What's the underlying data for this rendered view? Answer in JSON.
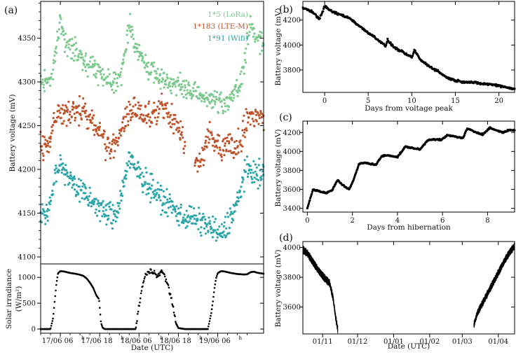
{
  "colors": {
    "lora": "#7cc98e",
    "ltem": "#c0522a",
    "wifi": "#2aa5a8",
    "black": "#000000"
  },
  "chart_data": [
    {
      "panel": "(a)",
      "type": "scatter",
      "xlabel": "Date (UTC)",
      "ylabel": "Battery voltage (mV)",
      "x_unit": "hours since 17/06 00:00",
      "xlim": [
        0,
        68
      ],
      "ylim": [
        4092,
        4392
      ],
      "yticks": [
        4100,
        4150,
        4200,
        4250,
        4300,
        4350
      ],
      "legend": [
        "1*5 (LoRa)",
        "1*183 (LTE-M)",
        "1*91 (Wifi)"
      ],
      "series": [
        {
          "name": "1*5 (LoRa)",
          "color_key": "lora",
          "x": [
            0,
            3,
            4,
            5,
            6,
            8,
            11,
            13,
            16,
            20,
            22,
            25,
            26,
            27,
            29,
            31,
            33,
            35,
            38,
            41,
            45,
            49,
            51,
            53,
            56,
            58,
            61,
            62,
            63,
            64,
            65,
            66,
            67,
            68
          ],
          "y": [
            4300,
            4303,
            4320,
            4343,
            4372,
            4340,
            4335,
            4325,
            4318,
            4305,
            4300,
            4310,
            4345,
            4368,
            4340,
            4326,
            4315,
            4308,
            4302,
            4298,
            4290,
            4284,
            4282,
            4278,
            4275,
            4282,
            4296,
            4320,
            4348,
            4362,
            4356,
            4350,
            4346,
            4343
          ]
        },
        {
          "name": "1*183 (LTE-M)",
          "color_key": "ltem",
          "x": [
            0,
            2,
            4,
            5,
            6,
            8,
            11,
            13,
            15,
            17,
            19,
            20,
            22,
            25,
            27,
            29,
            31,
            34,
            37,
            39,
            41,
            43,
            45,
            47,
            49,
            51,
            53,
            55,
            57,
            59,
            61,
            62,
            64,
            66,
            68
          ],
          "y": [
            4232,
            4226,
            4252,
            4262,
            4266,
            4260,
            4268,
            4270,
            4258,
            4248,
            4238,
            4228,
            4224,
            4250,
            4262,
            4268,
            4262,
            4264,
            4270,
            4262,
            4252,
            4240,
            4218,
            4214,
            4208,
            4242,
            4230,
            4222,
            4232,
            4225,
            4236,
            4248,
            4262,
            4262,
            4258
          ]
        },
        {
          "name": "1*91 (Wifi)",
          "color_key": "wifi",
          "x": [
            0,
            2,
            4,
            5,
            6,
            8,
            11,
            14,
            17,
            19,
            22,
            23,
            24,
            25,
            27,
            30,
            33,
            36,
            39,
            42,
            44,
            46,
            48,
            50,
            52,
            53,
            55,
            56,
            57,
            58,
            59,
            61,
            62,
            64,
            66,
            68
          ],
          "y": [
            4150,
            4148,
            4182,
            4195,
            4210,
            4195,
            4180,
            4168,
            4160,
            4152,
            4146,
            4150,
            4160,
            4180,
            4210,
            4195,
            4183,
            4170,
            4160,
            4150,
            4146,
            4145,
            4140,
            4138,
            4135,
            4130,
            4125,
            4128,
            4138,
            4148,
            4152,
            4175,
            4195,
            4198,
            4195,
            4193
          ]
        }
      ]
    },
    {
      "panel": "(a) lower",
      "type": "scatter",
      "xlabel": "Date (UTC)",
      "ylabel_lines": [
        "Solar irradiance",
        "(W/m²)"
      ],
      "x_unit": "hours since 17/06 00:00",
      "xlim": [
        0,
        68
      ],
      "ylim": [
        -80,
        1260
      ],
      "yticks": [
        0,
        500,
        1000
      ],
      "xtick_values": [
        6,
        18,
        30,
        42,
        54
      ],
      "xtick_labels": [
        {
          "main": "17/06 06",
          "sup": "h"
        },
        {
          "main": "17/06 18",
          "sup": "h"
        },
        {
          "main": "18/06 06",
          "sup": "h"
        },
        {
          "main": "18/06 18",
          "sup": "h"
        },
        {
          "main": "19/06 06",
          "sup": "h"
        }
      ],
      "x": [
        0,
        3,
        3.8,
        4.3,
        4.8,
        5.3,
        6,
        7,
        8,
        9,
        10,
        11,
        12,
        13,
        14,
        15,
        16,
        17,
        17.8,
        18.4,
        18.9,
        19.5,
        22,
        26,
        29,
        29.6,
        30.2,
        30.8,
        31.4,
        32,
        32.8,
        33.6,
        34.5,
        35.2,
        36,
        36.8,
        37.4,
        38,
        38.6,
        39.2,
        40,
        40.6,
        41.2,
        42,
        44,
        48,
        51,
        52,
        52.5,
        53,
        53.5,
        54,
        55,
        56,
        57,
        58,
        59,
        60,
        61,
        62,
        63,
        64,
        65,
        66,
        67,
        68
      ],
      "y": [
        0,
        0,
        220,
        560,
        880,
        1080,
        1120,
        1115,
        1100,
        1085,
        1075,
        1065,
        1050,
        1030,
        980,
        900,
        800,
        650,
        580,
        120,
        30,
        0,
        0,
        0,
        0,
        280,
        520,
        760,
        920,
        1050,
        1080,
        1120,
        1100,
        1070,
        1060,
        1100,
        1090,
        980,
        880,
        760,
        560,
        320,
        120,
        20,
        0,
        0,
        0,
        300,
        520,
        780,
        980,
        1080,
        1120,
        1115,
        1100,
        1085,
        1075,
        1065,
        1060,
        1055,
        1060,
        1100,
        1110,
        1090,
        1080,
        1070
      ]
    },
    {
      "panel": "(b)",
      "type": "line",
      "xlabel": "Days from voltage peak",
      "ylabel": "Battery voltage (mV)",
      "xlim": [
        -2.5,
        21.8
      ],
      "ylim": [
        3620,
        4350
      ],
      "xticks": [
        0,
        5,
        10,
        15,
        20
      ],
      "yticks": [
        3800,
        4000,
        4200
      ],
      "x": [
        -2.5,
        -1.5,
        -0.6,
        0,
        0.8,
        1.5,
        2,
        3,
        4,
        5,
        6,
        7,
        7.2,
        8,
        9,
        10,
        10.3,
        11,
        12,
        13,
        14,
        15,
        16,
        17,
        18,
        19,
        20,
        21,
        21.8
      ],
      "y": [
        4300,
        4270,
        4210,
        4310,
        4270,
        4250,
        4240,
        4210,
        4150,
        4100,
        4050,
        3990,
        4040,
        3980,
        3940,
        3900,
        3960,
        3880,
        3830,
        3790,
        3740,
        3715,
        3705,
        3700,
        3690,
        3685,
        3675,
        3660,
        3645
      ]
    },
    {
      "panel": "(c)",
      "type": "line",
      "xlabel": "Days from hibernation",
      "ylabel": "Battery voltage (mV)",
      "xlim": [
        -0.2,
        9.2
      ],
      "ylim": [
        3360,
        4320
      ],
      "xticks": [
        0,
        2,
        4,
        6,
        8
      ],
      "yticks": [
        3400,
        3600,
        3800,
        4000,
        4200
      ],
      "x": [
        0,
        0.05,
        0.25,
        0.55,
        0.8,
        1.1,
        1.35,
        1.45,
        1.6,
        1.85,
        2.05,
        2.3,
        2.55,
        3.05,
        3.3,
        3.6,
        4.0,
        4.35,
        4.6,
        5.0,
        5.35,
        5.6,
        5.95,
        6.2,
        6.5,
        6.9,
        7.1,
        7.4,
        7.8,
        8.1,
        8.3,
        8.7,
        9.0,
        9.2
      ],
      "y": [
        3400,
        3440,
        3600,
        3580,
        3560,
        3590,
        3700,
        3670,
        3640,
        3600,
        3700,
        3870,
        3880,
        3860,
        3950,
        3960,
        3940,
        4050,
        4040,
        4020,
        4120,
        4130,
        4120,
        4170,
        4160,
        4140,
        4240,
        4210,
        4180,
        4250,
        4230,
        4200,
        4230,
        4220
      ]
    },
    {
      "panel": "(d)",
      "type": "line",
      "xlabel": "Date (UTC)",
      "ylabel": "Battery voltage (mV)",
      "x_unit": "days since 15/10",
      "xlim": [
        0,
        182
      ],
      "ylim": [
        3420,
        4040
      ],
      "yticks": [
        3600,
        3800,
        4000
      ],
      "xtick_values": [
        17,
        47,
        78,
        109,
        137,
        168
      ],
      "xtick_labels": [
        "01/11",
        "01/12",
        "01/01",
        "01/02",
        "01/03",
        "01/04"
      ],
      "segments": [
        {
          "x": [
            0,
            4,
            8,
            13,
            18,
            23,
            26,
            28,
            30
          ],
          "y": [
            3985,
            3960,
            3910,
            3850,
            3800,
            3760,
            3660,
            3540,
            3450
          ]
        },
        {
          "x": [
            147,
            150,
            154,
            158,
            162,
            166,
            170,
            174,
            178,
            182
          ],
          "y": [
            3480,
            3560,
            3620,
            3680,
            3740,
            3800,
            3860,
            3920,
            3970,
            4010
          ]
        }
      ]
    }
  ]
}
